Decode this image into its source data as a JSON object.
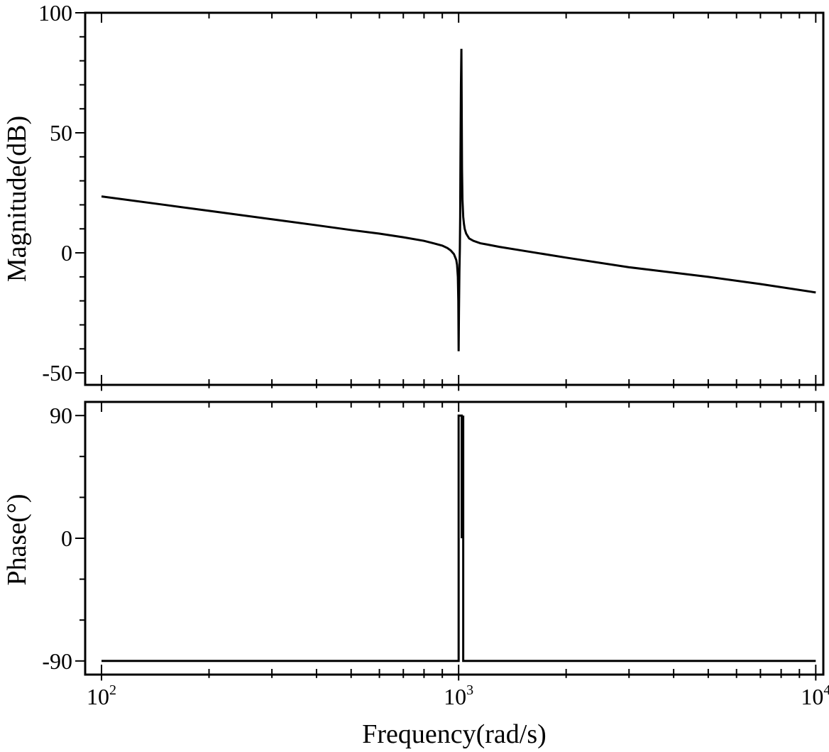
{
  "chart_data": [
    {
      "type": "line",
      "panel": "magnitude",
      "xscale": "log",
      "xlim": [
        90,
        10500
      ],
      "ylim": [
        -55,
        100
      ],
      "xlabel": "",
      "ylabel": "Magnitude(dB)",
      "yticks": [
        -50,
        0,
        50,
        100
      ],
      "ytick_labels": [
        "-50",
        "0",
        "50",
        "100"
      ],
      "line_color": "#000000",
      "series": [
        {
          "x": [
            100,
            150,
            200,
            300,
            400,
            500,
            600,
            700,
            800,
            850,
            900,
            930,
            950,
            970,
            985,
            990,
            995,
            998,
            1000,
            1002,
            1005,
            1008,
            1010,
            1012,
            1015,
            1018,
            1020,
            1022,
            1025,
            1030,
            1035,
            1040,
            1050,
            1070,
            1100,
            1150,
            1200,
            1300,
            1500,
            2000,
            3000,
            5000,
            7000,
            10000
          ],
          "y": [
            23.5,
            20.0,
            17.5,
            14.0,
            11.5,
            9.5,
            8.0,
            6.5,
            5.0,
            4.0,
            3.0,
            2.0,
            1.0,
            -0.5,
            -3.0,
            -5.0,
            -10.0,
            -20.0,
            -41.0,
            -25.0,
            -8.0,
            2.0,
            15.0,
            40.0,
            70.0,
            85.0,
            60.0,
            35.0,
            22.0,
            15.0,
            12.0,
            10.0,
            8.0,
            6.0,
            5.0,
            4.0,
            3.5,
            2.5,
            1.0,
            -2.0,
            -6.0,
            -10.0,
            -13.0,
            -16.5
          ]
        }
      ]
    },
    {
      "type": "line",
      "panel": "phase",
      "xscale": "log",
      "xlim": [
        90,
        10500
      ],
      "ylim": [
        -100,
        100
      ],
      "xlabel": "Frequency(rad/s)",
      "ylabel": "Phase(°)",
      "yticks": [
        -90,
        0,
        90
      ],
      "ytick_labels": [
        "-90",
        "0",
        "90"
      ],
      "xticks": [
        100,
        1000,
        10000
      ],
      "xtick_labels": [
        {
          "base": "10",
          "exp": "2"
        },
        {
          "base": "10",
          "exp": "3"
        },
        {
          "base": "10",
          "exp": "4"
        }
      ],
      "line_color": "#000000",
      "series": [
        {
          "x": [
            100,
            1000,
            1000,
            1020,
            1020,
            1030,
            1030,
            10000
          ],
          "y": [
            -90,
            -90,
            90,
            90,
            0,
            90,
            -90,
            -90
          ]
        }
      ]
    }
  ]
}
